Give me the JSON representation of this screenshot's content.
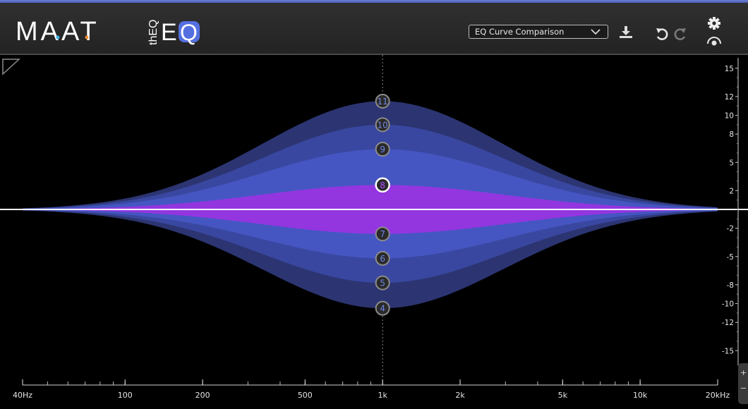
{
  "header": {
    "brand": "MAAT",
    "product": "thEQ",
    "preset": {
      "label": "EQ Curve Comparison"
    },
    "icons": {
      "download": "download-icon",
      "undo": "undo-icon",
      "redo": "redo-icon",
      "settings": "gear-icon",
      "monitor": "eye-icon"
    }
  },
  "graph": {
    "db_ticks": [
      {
        "label": "15",
        "db": 15
      },
      {
        "label": "12",
        "db": 12
      },
      {
        "label": "10",
        "db": 10
      },
      {
        "label": "8",
        "db": 8
      },
      {
        "label": "5",
        "db": 5
      },
      {
        "label": "2",
        "db": 2
      },
      {
        "label": "-2",
        "db": -2
      },
      {
        "label": "-5",
        "db": -5
      },
      {
        "label": "-8",
        "db": -8
      },
      {
        "label": "-10",
        "db": -10
      },
      {
        "label": "-12",
        "db": -12
      },
      {
        "label": "-15",
        "db": -15
      }
    ],
    "freq_labels": [
      {
        "label": "40Hz",
        "hz": 40
      },
      {
        "label": "100",
        "hz": 100
      },
      {
        "label": "200",
        "hz": 200
      },
      {
        "label": "500",
        "hz": 500
      },
      {
        "label": "1k",
        "hz": 1000
      },
      {
        "label": "2k",
        "hz": 2000
      },
      {
        "label": "5k",
        "hz": 5000
      },
      {
        "label": "10k",
        "hz": 10000
      },
      {
        "label": "20kHz",
        "hz": 20000
      }
    ],
    "db_range": [
      -16.5,
      16.5
    ],
    "freq_range_hz": [
      40,
      20000
    ],
    "center_hz": 1000,
    "curves": [
      {
        "label": "11",
        "gain_db": 11.5,
        "fill": "#2c3572",
        "selected": false
      },
      {
        "label": "10",
        "gain_db": 9.0,
        "fill": "#3947a0",
        "selected": false
      },
      {
        "label": "9",
        "gain_db": 6.4,
        "fill": "#4556c2",
        "selected": false
      },
      {
        "label": "8",
        "gain_db": 2.6,
        "fill": "#9336e0",
        "selected": true
      },
      {
        "label": "7",
        "gain_db": -2.6,
        "fill": "#9336e0",
        "selected": false
      },
      {
        "label": "6",
        "gain_db": -5.2,
        "fill": "#4556c2",
        "selected": false
      },
      {
        "label": "5",
        "gain_db": -7.8,
        "fill": "#3947a0",
        "selected": false
      },
      {
        "label": "4",
        "gain_db": -10.5,
        "fill": "#2c3572",
        "selected": false
      }
    ]
  },
  "zoom": {
    "plus": "+",
    "minus": "−"
  }
}
